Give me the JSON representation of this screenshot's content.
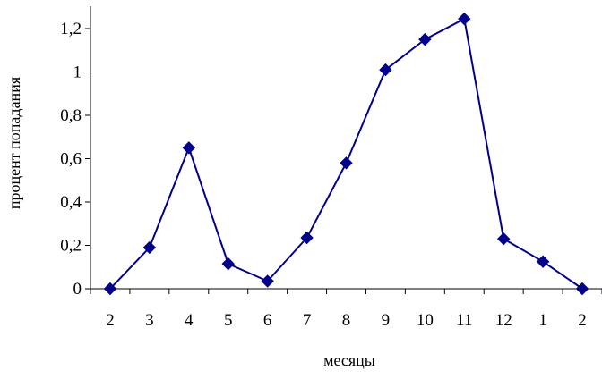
{
  "chart_data": {
    "type": "line",
    "xlabel": "месяцы",
    "ylabel": "процент попадания",
    "categories": [
      "2",
      "3",
      "4",
      "5",
      "6",
      "7",
      "8",
      "9",
      "10",
      "11",
      "12",
      "1",
      "2"
    ],
    "y_ticks": [
      "0",
      "0,2",
      "0,4",
      "0,6",
      "0,8",
      "1",
      "1,2"
    ],
    "ylim": [
      0,
      1.2
    ],
    "grid": false,
    "legend": "none",
    "series": [
      {
        "values": [
          0.0,
          0.19,
          0.65,
          0.115,
          0.035,
          0.235,
          0.58,
          1.01,
          1.15,
          1.245,
          0.23,
          0.125,
          0.0
        ],
        "color": "#00008B"
      }
    ]
  }
}
